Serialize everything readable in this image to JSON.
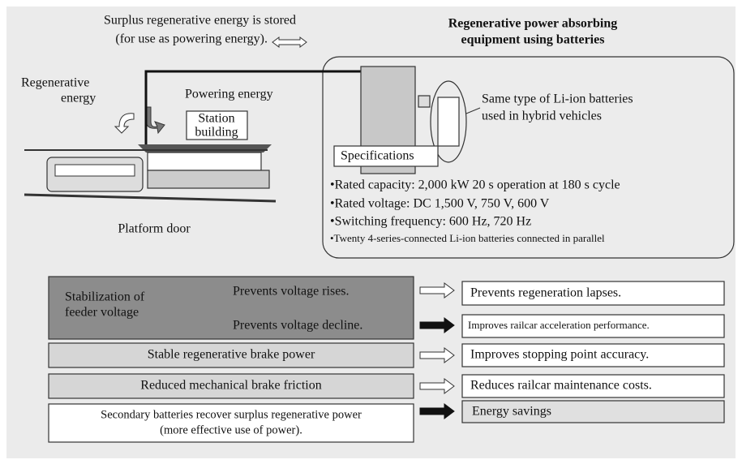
{
  "header": {
    "title_lines": [
      "Regenerative power absorbing",
      "equipment using batteries"
    ]
  },
  "illustration": {
    "surplus_lines": [
      "Surplus regenerative energy is stored",
      "(for use as powering energy)."
    ],
    "regenerative_lines": [
      "Regenerative",
      "energy"
    ],
    "powering": "Powering energy",
    "station_lines": [
      "Station",
      "building"
    ],
    "platform_door": "Platform door"
  },
  "equipment": {
    "battery_lines": [
      "Same type of Li-ion batteries",
      "used in hybrid vehicles"
    ],
    "specs_title": "Specifications",
    "specs": [
      "•Rated capacity: 2,000 kW 20 s operation at 180 s cycle",
      "•Rated voltage: DC 1,500 V, 750 V, 600 V",
      "•Switching frequency: 600 Hz, 720 Hz",
      "•Twenty 4-series-connected Li-ion batteries connected in parallel"
    ]
  },
  "effects": {
    "rows": [
      {
        "label_lines": [
          "Stabilization of",
          "feeder voltage"
        ],
        "causes": [
          "Prevents voltage rises.",
          "Prevents voltage decline."
        ],
        "outcomes": [
          "Prevents regeneration lapses.",
          "Improves railcar acceleration performance."
        ]
      },
      {
        "label_lines": [
          "Stable regenerative brake power"
        ],
        "outcomes": [
          "Improves stopping point accuracy."
        ]
      },
      {
        "label_lines": [
          "Reduced mechanical brake friction"
        ],
        "outcomes": [
          "Reduces railcar maintenance costs."
        ]
      },
      {
        "label_lines": [
          "Secondary batteries recover surplus regenerative power",
          "(more effective use of power)."
        ],
        "outcomes": [
          "Energy savings"
        ]
      }
    ]
  }
}
